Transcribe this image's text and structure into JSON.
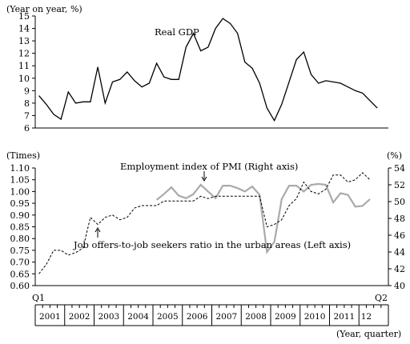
{
  "chart_data": [
    {
      "type": "line",
      "ylabel": "(Year on year, %)",
      "ylim": [
        6,
        15
      ],
      "yticks": [
        "6",
        "7",
        "8",
        "9",
        "10",
        "11",
        "12",
        "13",
        "14",
        "15"
      ],
      "series": [
        {
          "name": "Real GDP",
          "style": "solid",
          "color": "#000000",
          "values": [
            8.6,
            7.9,
            7.1,
            6.7,
            8.9,
            8.0,
            8.1,
            8.1,
            10.9,
            8.0,
            9.7,
            9.9,
            10.5,
            9.8,
            9.3,
            9.6,
            11.2,
            10.1,
            9.9,
            9.9,
            12.5,
            13.6,
            12.2,
            12.5,
            14.0,
            14.8,
            14.4,
            13.6,
            11.3,
            10.8,
            9.6,
            7.6,
            6.6,
            7.9,
            9.7,
            11.5,
            12.1,
            10.3,
            9.6,
            9.8,
            9.7,
            9.6,
            9.3,
            9.0,
            8.8,
            8.2,
            7.6
          ]
        }
      ]
    },
    {
      "type": "line",
      "ylabel_left": "(Times)",
      "ylabel_right": "(%)",
      "ylim_left": [
        0.6,
        1.1
      ],
      "ylim_right": [
        40,
        54
      ],
      "yticks_left": [
        "0.60",
        "0.65",
        "0.70",
        "0.75",
        "0.80",
        "0.85",
        "0.90",
        "0.95",
        "1.00",
        "1.05",
        "1.10"
      ],
      "yticks_right": [
        "40",
        "42",
        "44",
        "46",
        "48",
        "50",
        "52",
        "54"
      ],
      "series": [
        {
          "name": "Job offers-to-job seekers ratio in the urban areas (Left axis)",
          "axis": "left",
          "style": "dashed",
          "color": "#000000",
          "start_index": 0,
          "values": [
            0.65,
            0.69,
            0.75,
            0.75,
            0.73,
            0.74,
            0.76,
            0.89,
            0.86,
            0.89,
            0.9,
            0.88,
            0.89,
            0.93,
            0.94,
            0.94,
            0.94,
            0.96,
            0.96,
            0.96,
            0.96,
            0.96,
            0.98,
            0.97,
            0.98,
            0.98,
            0.98,
            0.98,
            0.98,
            0.98,
            0.98,
            0.85,
            0.86,
            0.88,
            0.94,
            0.97,
            1.04,
            1.0,
            0.99,
            1.01,
            1.07,
            1.07,
            1.04,
            1.05,
            1.08,
            1.05
          ]
        },
        {
          "name": "Employment index of PMI (Right axis)",
          "axis": "right",
          "style": "solid",
          "color": "#aaaaaa",
          "start_index": 16,
          "values": [
            50.2,
            50.9,
            51.7,
            50.7,
            50.4,
            50.9,
            52.0,
            51.2,
            50.4,
            51.9,
            51.9,
            51.6,
            51.2,
            51.8,
            50.8,
            44.0,
            45.2,
            50.3,
            51.9,
            51.9,
            51.2,
            52.0,
            52.1,
            52.0,
            49.9,
            51.0,
            50.8,
            49.4,
            49.5,
            50.3
          ]
        }
      ],
      "x_corner_labels": {
        "start": "Q1",
        "end": "Q2"
      },
      "years": [
        "2001",
        "2002",
        "2003",
        "2004",
        "2005",
        "2006",
        "2007",
        "2008",
        "2009",
        "2010",
        "2011",
        "12"
      ],
      "xlabel": "(Year, quarter)"
    }
  ]
}
